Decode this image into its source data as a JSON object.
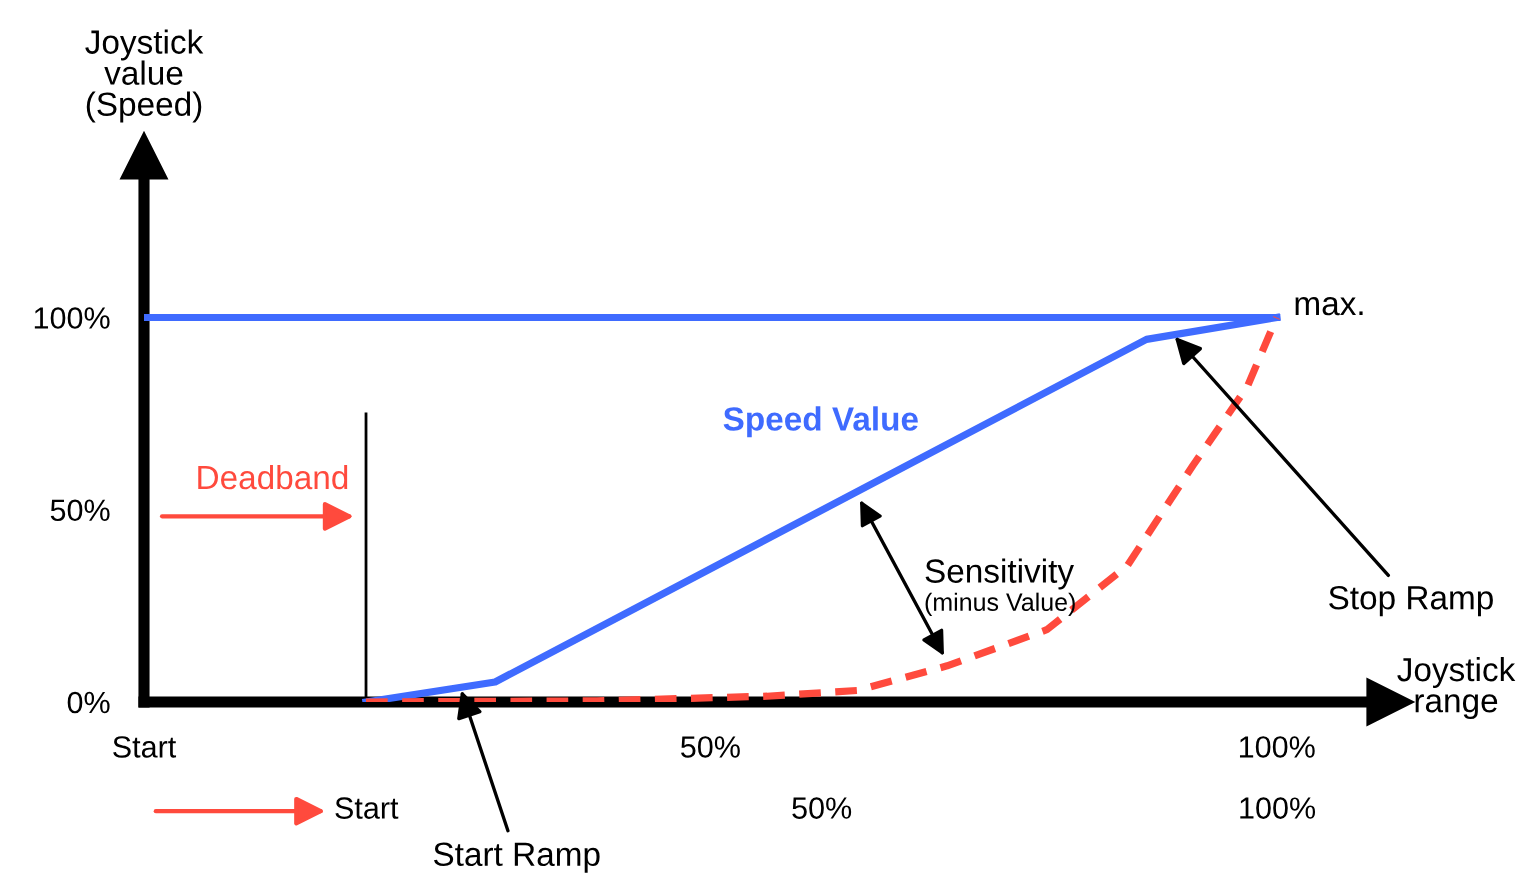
{
  "chart_data": {
    "type": "line",
    "ylabel": "Joystick\nvalue\n(Speed)",
    "xlabel": "Joystick\nrange",
    "xlim": [
      0,
      110
    ],
    "ylim": [
      0,
      142
    ],
    "xticks": [
      {
        "value": 0,
        "label": "Start"
      },
      {
        "value": 50,
        "label": "50%"
      },
      {
        "value": 100,
        "label": "100%"
      }
    ],
    "yticks": [
      {
        "value": 0,
        "label": "0%"
      },
      {
        "value": 50,
        "label": "50%"
      },
      {
        "value": 100,
        "label": "100%"
      }
    ],
    "x2lim": [
      -24.4,
      112.4
    ],
    "x2ticks": [
      {
        "value": 0,
        "label": "Start"
      },
      {
        "value": 50,
        "label": "50%"
      },
      {
        "value": 100,
        "label": "100%"
      }
    ],
    "series": [
      {
        "color": "#3f6bff",
        "line_style": "solid",
        "x": [
          0,
          100
        ],
        "values": [
          100,
          100
        ]
      },
      {
        "name": "Speed Value",
        "color": "#3f6bff",
        "line_style": "solid",
        "x": [
          19.6,
          31,
          88.5,
          100
        ],
        "values": [
          0,
          5.2,
          94.3,
          100
        ]
      },
      {
        "color": "#ff4a3d",
        "line_style": "dashed",
        "x": [
          19.6,
          40,
          55,
          63,
          70.9,
          79.7,
          86.8,
          92.6,
          97.4,
          100
        ],
        "values": [
          0,
          0.3,
          1.5,
          3,
          9.4,
          18.8,
          35.4,
          61.5,
          82,
          100
        ]
      }
    ],
    "ref_lines": [
      {
        "axis": "x",
        "value": 19.6,
        "label": "Deadband",
        "color": "#000000"
      }
    ],
    "annotations": [
      {
        "text": "max.",
        "x": 100,
        "y": 100
      },
      {
        "text": "Stop Ramp",
        "x": 91,
        "y": 95
      },
      {
        "text": "Start Ramp",
        "x": 28,
        "y": 3
      },
      "Sensitivity",
      "(minus Value)"
    ],
    "grid": false,
    "marker": "none"
  }
}
